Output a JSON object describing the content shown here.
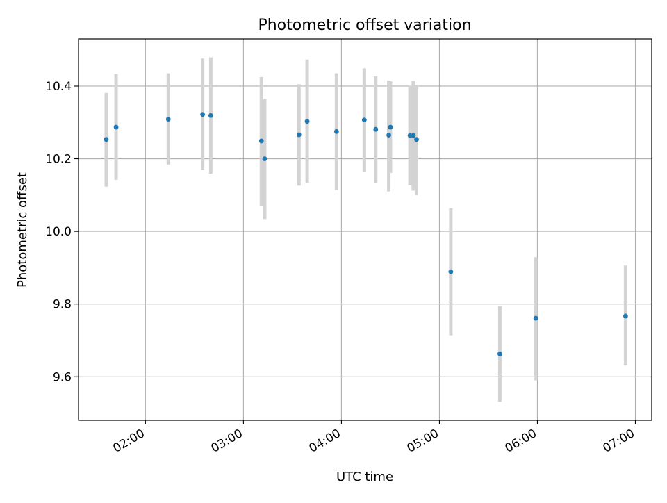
{
  "chart_data": {
    "type": "scatter",
    "title": "Photometric offset variation",
    "xlabel": "UTC time",
    "ylabel": "Photometric offset",
    "x_unit": "time of day (hours, UTC)",
    "xlim": [
      "01:19",
      "07:10"
    ],
    "ylim": [
      9.48,
      10.53
    ],
    "xticks": [
      {
        "label": "02:00",
        "value": "02:00"
      },
      {
        "label": "03:00",
        "value": "03:00"
      },
      {
        "label": "04:00",
        "value": "04:00"
      },
      {
        "label": "05:00",
        "value": "05:00"
      },
      {
        "label": "06:00",
        "value": "06:00"
      },
      {
        "label": "07:00",
        "value": "07:00"
      }
    ],
    "yticks": [
      {
        "label": "9.6",
        "value": 9.6
      },
      {
        "label": "9.8",
        "value": 9.8
      },
      {
        "label": "10.0",
        "value": 10.0
      },
      {
        "label": "10.2",
        "value": 10.2
      },
      {
        "label": "10.4",
        "value": 10.4
      }
    ],
    "grid": true,
    "colors": {
      "marker": "#1f77b4",
      "errorbar": "#d3d3d3",
      "grid": "#b0b0b0"
    },
    "points": [
      {
        "x": "01:36",
        "y": 10.253,
        "lo": 10.123,
        "hi": 10.381
      },
      {
        "x": "01:42",
        "y": 10.287,
        "lo": 10.142,
        "hi": 10.433
      },
      {
        "x": "02:14",
        "y": 10.309,
        "lo": 10.184,
        "hi": 10.435
      },
      {
        "x": "02:35",
        "y": 10.322,
        "lo": 10.169,
        "hi": 10.476
      },
      {
        "x": "02:40",
        "y": 10.319,
        "lo": 10.159,
        "hi": 10.479
      },
      {
        "x": "03:11",
        "y": 10.249,
        "lo": 10.071,
        "hi": 10.425
      },
      {
        "x": "03:13",
        "y": 10.2,
        "lo": 10.034,
        "hi": 10.365
      },
      {
        "x": "03:34",
        "y": 10.266,
        "lo": 10.126,
        "hi": 10.405
      },
      {
        "x": "03:39",
        "y": 10.303,
        "lo": 10.134,
        "hi": 10.473
      },
      {
        "x": "03:57",
        "y": 10.275,
        "lo": 10.113,
        "hi": 10.435
      },
      {
        "x": "04:14",
        "y": 10.307,
        "lo": 10.163,
        "hi": 10.449
      },
      {
        "x": "04:21",
        "y": 10.281,
        "lo": 10.134,
        "hi": 10.427
      },
      {
        "x": "04:29",
        "y": 10.265,
        "lo": 10.11,
        "hi": 10.415
      },
      {
        "x": "04:30",
        "y": 10.287,
        "lo": 10.161,
        "hi": 10.413
      },
      {
        "x": "04:42",
        "y": 10.264,
        "lo": 10.127,
        "hi": 10.401
      },
      {
        "x": "04:44",
        "y": 10.264,
        "lo": 10.112,
        "hi": 10.415
      },
      {
        "x": "04:46",
        "y": 10.253,
        "lo": 10.1,
        "hi": 10.403
      },
      {
        "x": "05:07",
        "y": 9.889,
        "lo": 9.714,
        "hi": 10.064
      },
      {
        "x": "05:37",
        "y": 9.663,
        "lo": 9.531,
        "hi": 9.794
      },
      {
        "x": "05:59",
        "y": 9.761,
        "lo": 9.59,
        "hi": 9.929
      },
      {
        "x": "06:54",
        "y": 9.767,
        "lo": 9.631,
        "hi": 9.906
      }
    ]
  }
}
